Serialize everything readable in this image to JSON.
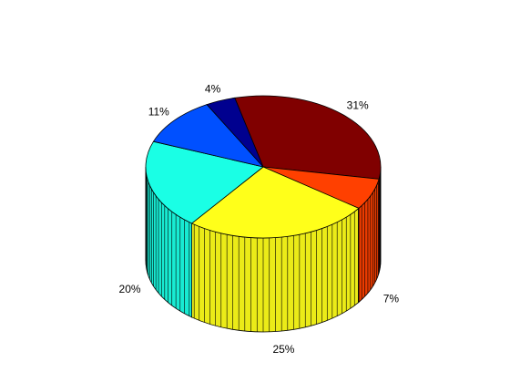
{
  "chart_data": {
    "type": "pie",
    "title": "",
    "three_d": true,
    "slices": [
      {
        "label": "31%",
        "value": 31,
        "color": "#800000"
      },
      {
        "label": "7%",
        "value": 7,
        "color": "#ff4000"
      },
      {
        "label": "25%",
        "value": 25,
        "color": "#ffff1a"
      },
      {
        "label": "20%",
        "value": 20,
        "color": "#1affe5"
      },
      {
        "label": "11%",
        "value": 11,
        "color": "#0050ff"
      },
      {
        "label": "4%",
        "value": 4,
        "color": "#00008f"
      }
    ]
  }
}
